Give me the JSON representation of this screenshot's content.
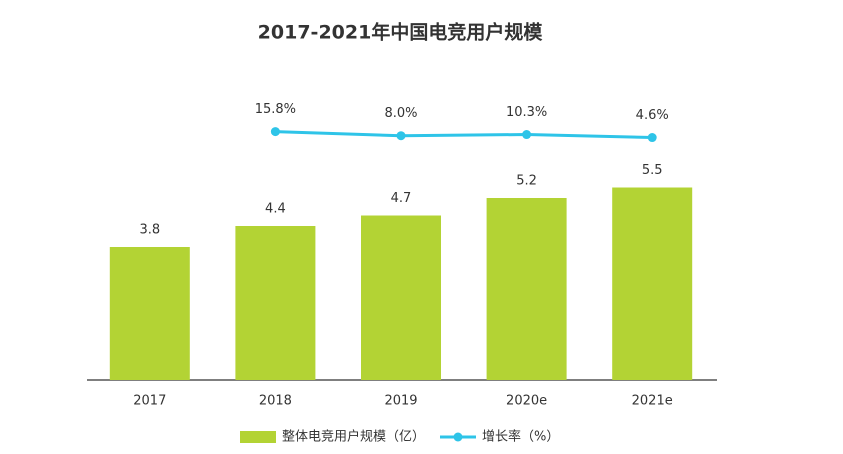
{
  "chart_data": {
    "type": "bar+line",
    "title": "2017-2021年中国电竞用户规模",
    "categories": [
      "2017",
      "2018",
      "2019",
      "2020e",
      "2021e"
    ],
    "series": [
      {
        "name": "整体电竞用户规模（亿）",
        "type": "bar",
        "color": "#b3d334",
        "values": [
          3.8,
          4.4,
          4.7,
          5.2,
          5.5
        ]
      },
      {
        "name": "增长率（%）",
        "type": "line",
        "axis": "y2",
        "color": "#2ec4e8",
        "values": [
          null,
          15.8,
          8.0,
          10.3,
          4.6
        ],
        "value_labels": [
          null,
          "15.8%",
          "8.0%",
          "10.3%",
          "4.6%"
        ]
      }
    ],
    "ylim": [
      0,
      8
    ],
    "y2lim": [
      -450,
      75
    ],
    "grid": false,
    "legend": "bottom"
  }
}
